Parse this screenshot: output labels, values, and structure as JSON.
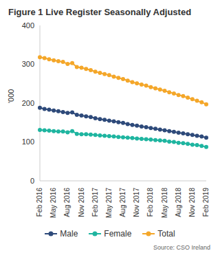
{
  "chart_data": {
    "type": "line",
    "title": "Figure 1 Live Register Seasonally Adjusted",
    "y_label": "'000",
    "source": "Source: CSO Ireland",
    "categories": [
      "Feb 2016",
      null,
      null,
      "May 2016",
      null,
      null,
      "Aug 2016",
      null,
      null,
      "Nov 2016",
      null,
      null,
      "Feb 2017",
      null,
      null,
      "May 2017",
      null,
      null,
      "Aug 2017",
      null,
      null,
      "Nov 2017",
      null,
      null,
      "Feb 2018",
      null,
      null,
      "May 2018",
      null,
      null,
      "Aug 2018",
      null,
      null,
      "Nov 2018",
      null,
      null,
      "Feb 2019"
    ],
    "series": [
      {
        "name": "Male",
        "color": "#2e4a7a",
        "marker": "circle",
        "values": [
          188,
          185,
          183,
          181,
          179,
          177,
          175,
          176,
          170,
          168,
          166,
          164,
          161,
          159,
          157,
          155,
          153,
          151,
          149,
          146,
          144,
          142,
          140,
          138,
          136,
          134,
          132,
          130,
          128,
          126,
          124,
          122,
          120,
          118,
          116,
          114,
          111
        ]
      },
      {
        "name": "Female",
        "color": "#1fb5a0",
        "marker": "circle",
        "values": [
          131,
          130,
          129,
          128,
          127,
          127,
          125,
          128,
          121,
          120,
          120,
          119,
          118,
          117,
          116,
          115,
          114,
          113,
          112,
          111,
          110,
          109,
          108,
          107,
          106,
          105,
          104,
          103,
          101,
          100,
          98,
          97,
          95,
          93,
          92,
          90,
          87
        ]
      },
      {
        "name": "Total",
        "color": "#f4a72a",
        "marker": "circle",
        "values": [
          318,
          316,
          313,
          310,
          308,
          306,
          301,
          303,
          293,
          291,
          288,
          285,
          281,
          278,
          275,
          272,
          268,
          265,
          262,
          258,
          254,
          251,
          248,
          245,
          241,
          238,
          235,
          232,
          228,
          225,
          221,
          218,
          214,
          210,
          206,
          202,
          197
        ]
      }
    ],
    "ylim": [
      0,
      400
    ],
    "yticks": [
      0,
      100,
      200,
      300,
      400
    ],
    "grid": false,
    "legend": "bottom"
  }
}
